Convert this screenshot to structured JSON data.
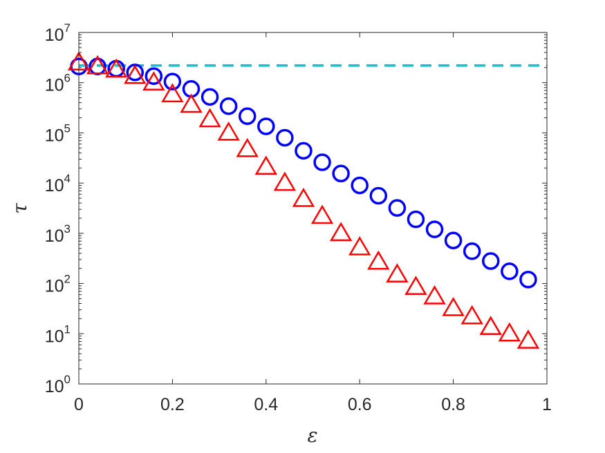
{
  "chart_data": {
    "type": "scatter",
    "xlabel": "ε",
    "ylabel": "τ",
    "xlim": [
      0,
      1
    ],
    "ylim": [
      1,
      10000000
    ],
    "yscale": "log",
    "grid": false,
    "legend": "none",
    "x_ticks": [
      "0",
      "0.2",
      "0.4",
      "0.6",
      "0.8",
      "1"
    ],
    "y_ticks": [
      {
        "base": "10",
        "exp": "0"
      },
      {
        "base": "10",
        "exp": "1"
      },
      {
        "base": "10",
        "exp": "2"
      },
      {
        "base": "10",
        "exp": "3"
      },
      {
        "base": "10",
        "exp": "4"
      },
      {
        "base": "10",
        "exp": "5"
      },
      {
        "base": "10",
        "exp": "6"
      },
      {
        "base": "10",
        "exp": "7"
      }
    ],
    "series": [
      {
        "marker": "circle",
        "color": "#0000FF",
        "x": [
          0,
          0.04,
          0.08,
          0.12,
          0.16,
          0.2,
          0.24,
          0.28,
          0.32,
          0.36,
          0.4,
          0.44,
          0.48,
          0.52,
          0.56,
          0.6,
          0.64,
          0.68,
          0.72,
          0.76,
          0.8,
          0.84,
          0.88,
          0.92,
          0.96
        ],
        "y": [
          2100000,
          2100000,
          1900000,
          1600000,
          1350000,
          1050000,
          750000,
          520000,
          340000,
          215000,
          135000,
          80000,
          44000,
          26000,
          15500,
          9000,
          5600,
          3200,
          1900,
          1200,
          720,
          440,
          280,
          175,
          120
        ]
      },
      {
        "marker": "triangle",
        "color": "#FF0000",
        "x": [
          0,
          0.04,
          0.08,
          0.12,
          0.16,
          0.2,
          0.24,
          0.28,
          0.32,
          0.36,
          0.4,
          0.44,
          0.48,
          0.52,
          0.56,
          0.6,
          0.64,
          0.68,
          0.72,
          0.76,
          0.8,
          0.84,
          0.88,
          0.92,
          0.96
        ],
        "y": [
          2500000,
          2100000,
          1800000,
          1350000,
          1000000,
          580000,
          360000,
          185000,
          100000,
          47000,
          21000,
          10000,
          4800,
          2200,
          1000,
          520,
          270,
          150,
          85,
          55,
          32,
          22,
          13.5,
          10,
          7.2
        ]
      },
      {
        "marker": "dashed-line",
        "color": "#17BECF",
        "x": [
          0,
          1
        ],
        "y": [
          2200000,
          2200000
        ]
      }
    ]
  }
}
